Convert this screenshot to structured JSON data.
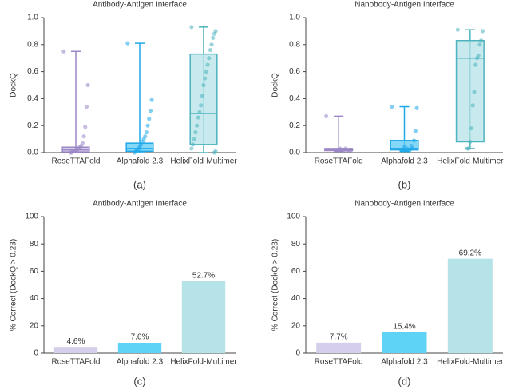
{
  "chart_data": [
    {
      "type": "box",
      "title": "Antibody-Antigen Interface",
      "ylabel": "DockQ",
      "caption": "(a)",
      "ylim": [
        0,
        1
      ],
      "yticks": [
        {
          "value": 0,
          "label": "0.0"
        },
        0.2,
        0.4,
        0.6,
        0.8,
        {
          "value": 1,
          "label": "1.0"
        }
      ],
      "series": [
        {
          "name": "RoseTTAFold",
          "color": "#9b87c6",
          "fill": "#c9bde6",
          "box": {
            "min": 0,
            "q1": 0.005,
            "median": 0.02,
            "q3": 0.04,
            "max": 0.75
          },
          "points": [
            0.75,
            0.5,
            0.34,
            0.19,
            0.12,
            0.07,
            0.05,
            0.04,
            0.03,
            0.02,
            0.02,
            0.01,
            0.01,
            0,
            0
          ]
        },
        {
          "name": "Alphafold 2.3",
          "color": "#1fa8e8",
          "fill": "#5ccaf5",
          "box": {
            "min": 0,
            "q1": 0.01,
            "median": 0.03,
            "q3": 0.07,
            "max": 0.81
          },
          "points": [
            0.81,
            0.39,
            0.31,
            0.25,
            0.2,
            0.15,
            0.12,
            0.1,
            0.08,
            0.06,
            0.04,
            0.03,
            0.02,
            0.01,
            0
          ]
        },
        {
          "name": "HelixFold-Multimer",
          "color": "#4db3bd",
          "fill": "#b6e3e8",
          "box": {
            "min": 0,
            "q1": 0.06,
            "median": 0.29,
            "q3": 0.73,
            "max": 0.93
          },
          "points": [
            0.93,
            0.9,
            0.88,
            0.85,
            0.8,
            0.76,
            0.7,
            0.65,
            0.6,
            0.55,
            0.5,
            0.42,
            0.35,
            0.3,
            0.26,
            0.2,
            0.15,
            0.1,
            0.06,
            0.03,
            0.01,
            0
          ]
        }
      ]
    },
    {
      "type": "box",
      "title": "Nanobody-Antigen Interface",
      "ylabel": "DockQ",
      "caption": "(b)",
      "ylim": [
        0,
        1
      ],
      "yticks": [
        {
          "value": 0,
          "label": "0.0"
        },
        0.2,
        0.4,
        0.6,
        0.8,
        {
          "value": 1,
          "label": "1.0"
        }
      ],
      "series": [
        {
          "name": "RoseTTAFold",
          "color": "#9b87c6",
          "fill": "#c9bde6",
          "box": {
            "min": 0.01,
            "q1": 0.015,
            "median": 0.02,
            "q3": 0.03,
            "max": 0.27
          },
          "points": [
            0.27,
            0.02,
            0.02,
            0.01,
            0.02,
            0.03,
            0.02,
            0.01,
            0.02,
            0.03,
            0.02,
            0.02,
            0.01
          ]
        },
        {
          "name": "Alphafold 2.3",
          "color": "#1fa8e8",
          "fill": "#5ccaf5",
          "box": {
            "min": 0.01,
            "q1": 0.02,
            "median": 0.03,
            "q3": 0.09,
            "max": 0.34
          },
          "points": [
            0.34,
            0.33,
            0.16,
            0.09,
            0.03,
            0.05,
            0.02,
            0.01,
            0.03,
            0.02,
            0.04,
            0.01,
            0.02
          ]
        },
        {
          "name": "HelixFold-Multimer",
          "color": "#4db3bd",
          "fill": "#b6e3e8",
          "box": {
            "min": 0.03,
            "q1": 0.08,
            "median": 0.7,
            "q3": 0.83,
            "max": 0.91
          },
          "points": [
            0.91,
            0.9,
            0.83,
            0.8,
            0.72,
            0.7,
            0.65,
            0.45,
            0.35,
            0.18,
            0.08,
            0.03,
            0.03
          ]
        }
      ]
    },
    {
      "type": "bar",
      "title": "Antibody-Antigen Interface",
      "ylabel": "% Correct (DockQ > 0.23)",
      "caption": "(c)",
      "ylim": [
        0,
        100
      ],
      "yticks": [
        0,
        20,
        40,
        60,
        80,
        100
      ],
      "categories": [
        "RoseTTAFold",
        "Alphafold 2.3",
        "HelixFold-Multimer"
      ],
      "values": [
        4.6,
        7.6,
        52.7
      ],
      "value_labels": [
        "4.6%",
        "7.6%",
        "52.7%"
      ],
      "colors": [
        "#d6cfeb",
        "#5fd3f5",
        "#b6e3e8"
      ]
    },
    {
      "type": "bar",
      "title": "Nanobody-Antigen Interface",
      "ylabel": "% Correct (DockQ > 0.23)",
      "caption": "(d)",
      "ylim": [
        0,
        100
      ],
      "yticks": [
        0,
        20,
        40,
        60,
        80,
        100
      ],
      "categories": [
        "RoseTTAFold",
        "Alphafold 2.3",
        "HelixFold-Multimer"
      ],
      "values": [
        7.7,
        15.4,
        69.2
      ],
      "value_labels": [
        "7.7%",
        "15.4%",
        "69.2%"
      ],
      "colors": [
        "#d6cfeb",
        "#5fd3f5",
        "#b6e3e8"
      ]
    }
  ]
}
